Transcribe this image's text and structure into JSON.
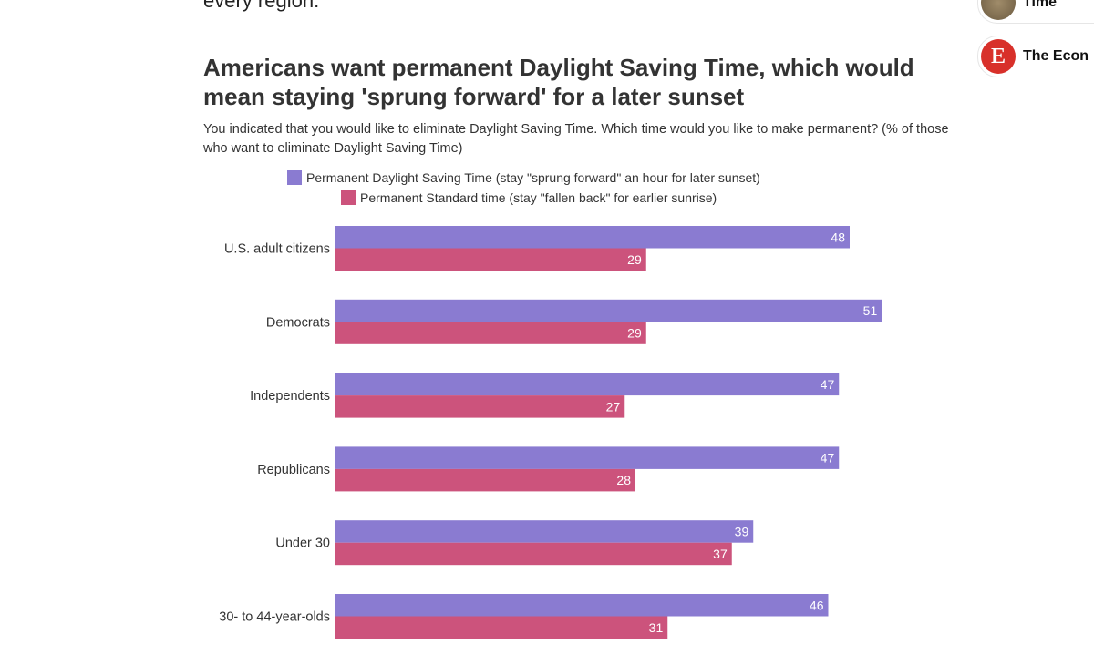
{
  "article": {
    "lead_text": "every region."
  },
  "sidebar": {
    "items": [
      {
        "label": "Time",
        "icon": "avatar-photo"
      },
      {
        "label": "The Econ",
        "icon": "economist-logo",
        "logo_letter": "E"
      }
    ]
  },
  "chart_data": {
    "type": "bar",
    "orientation": "horizontal",
    "title": "Americans want permanent Daylight Saving Time, which would mean staying 'sprung forward' for a later sunset",
    "subtitle": "You indicated that you would like to eliminate Daylight Saving Time. Which time would you like to make permanent? (% of those who want to eliminate Daylight Saving Time)",
    "categories": [
      "U.S. adult citizens",
      "Democrats",
      "Independents",
      "Republicans",
      "Under 30",
      "30- to 44-year-olds"
    ],
    "series": [
      {
        "name": "Permanent Daylight Saving Time (stay \"sprung forward\" an hour for later sunset)",
        "color": "#8a7bd1",
        "values": [
          48,
          51,
          47,
          47,
          39,
          46
        ]
      },
      {
        "name": "Permanent Standard time (stay \"fallen back\" for earlier sunrise)",
        "color": "#cc537c",
        "values": [
          29,
          29,
          27,
          28,
          37,
          31
        ]
      }
    ],
    "xlim": [
      0,
      51
    ],
    "grid": false,
    "legend_position": "top"
  }
}
